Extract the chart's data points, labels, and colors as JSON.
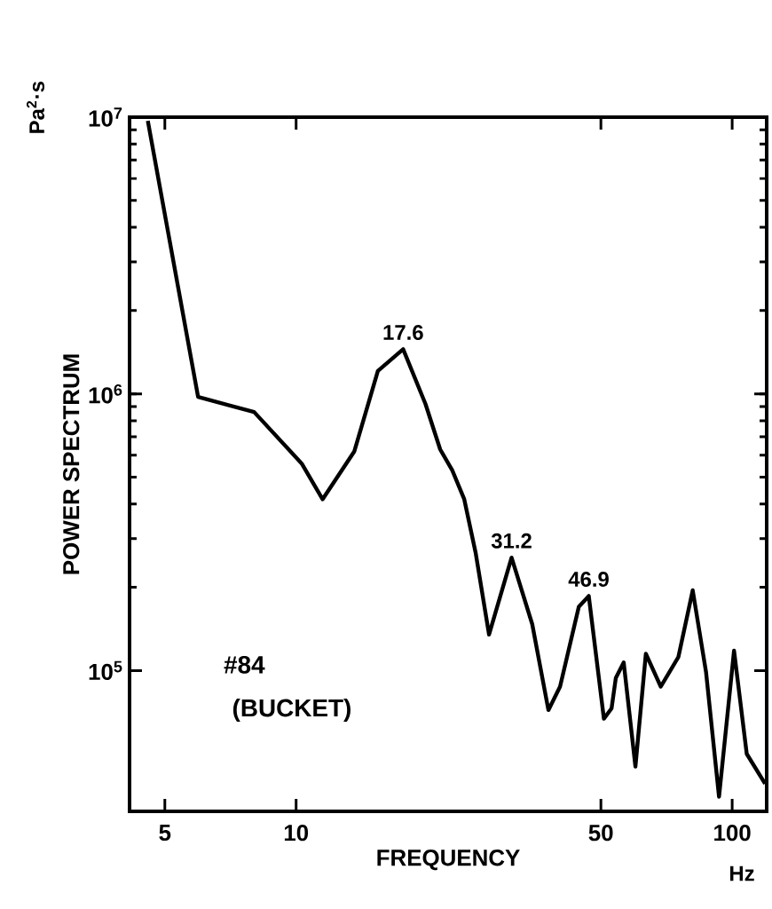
{
  "chart_data": {
    "type": "line",
    "xlabel": "FREQUENCY",
    "ylabel": "POWER SPECTRUM",
    "log": "xy",
    "xlim": [
      4.15,
      120
    ],
    "ylim": [
      31000,
      10000000
    ],
    "xticks": [
      5,
      10,
      50,
      100
    ],
    "yticks": [
      {
        "value": 100000,
        "label": "10$^{5}$"
      },
      {
        "value": 1000000,
        "label": "10$^{6}$"
      },
      {
        "value": 10000000,
        "label": "10$^{7}$"
      }
    ],
    "x": [
      4.57,
      5.96,
      8.01,
      10.3,
      11.5,
      13.6,
      15.4,
      17.6,
      19.8,
      21.4,
      22.8,
      24.3,
      25.8,
      27.7,
      31.2,
      34.8,
      37.9,
      40.3,
      44.5,
      46.9,
      50.8,
      52.9,
      54.1,
      56.4,
      60,
      63.4,
      68.6,
      75.3,
      81.2,
      87.1,
      93.3,
      101,
      108,
      119
    ],
    "series": [
      {
        "color": "#000000",
        "values": [
          9700000,
          975000,
          860000,
          560000,
          416000,
          620000,
          1210000,
          1450000,
          920000,
          630000,
          530000,
          416000,
          267000,
          135000,
          256000,
          147000,
          72000,
          87500,
          170000,
          186000,
          67000,
          73000,
          94000,
          107000,
          45000,
          115000,
          87500,
          112000,
          195000,
          99000,
          35000,
          118000,
          50000,
          39000
        ]
      }
    ],
    "line_style": "solid",
    "marker": "none",
    "grid": false,
    "annotations": [
      {
        "text": "17.6",
        "x": 17.6,
        "y": 1450000
      },
      {
        "text": "31.2",
        "x": 31.2,
        "y": 256000
      },
      {
        "text": "46.9",
        "x": 46.9,
        "y": 186000
      },
      "#84",
      "(BUCKET)",
      "Pa$^{2}$·s",
      "Hz"
    ]
  }
}
